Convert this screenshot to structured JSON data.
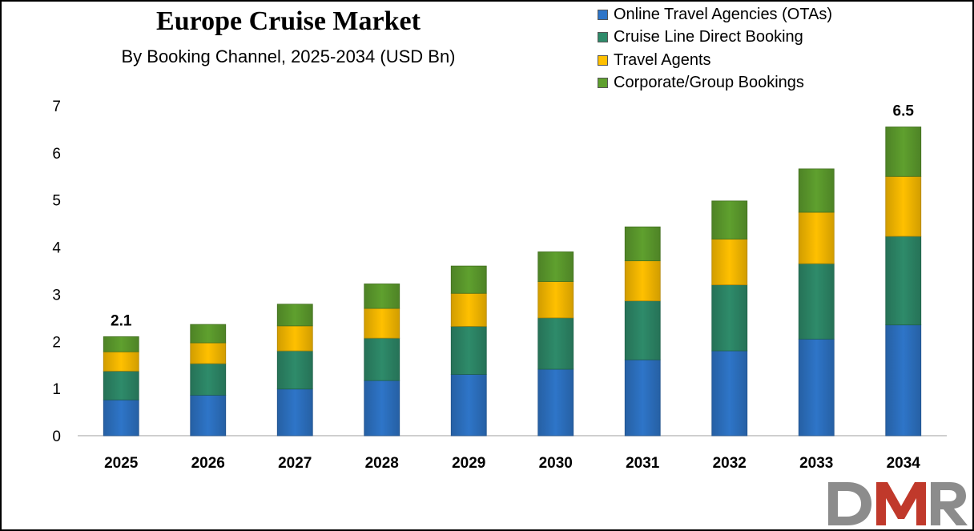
{
  "chart_data": {
    "type": "bar",
    "stacked": true,
    "title": "Europe Cruise Market",
    "subtitle": "By Booking Channel, 2025-2034 (USD Bn)",
    "categories": [
      "2025",
      "2026",
      "2027",
      "2028",
      "2029",
      "2030",
      "2031",
      "2032",
      "2033",
      "2034"
    ],
    "series": [
      {
        "name": "Online Travel Agencies (OTAs)",
        "color": "#2e75c8",
        "values": [
          0.76,
          0.86,
          0.99,
          1.17,
          1.3,
          1.41,
          1.61,
          1.8,
          2.05,
          2.35
        ]
      },
      {
        "name": "Cruise Line Direct Booking",
        "color": "#2e8b6a",
        "values": [
          0.61,
          0.67,
          0.81,
          0.9,
          1.02,
          1.09,
          1.25,
          1.4,
          1.6,
          1.88
        ]
      },
      {
        "name": "Travel Agents",
        "color": "#ffc000",
        "values": [
          0.41,
          0.44,
          0.53,
          0.63,
          0.7,
          0.77,
          0.85,
          0.97,
          1.09,
          1.27
        ]
      },
      {
        "name": "Corporate/Group Bookings",
        "color": "#5fa02e",
        "values": [
          0.32,
          0.39,
          0.46,
          0.52,
          0.58,
          0.63,
          0.72,
          0.81,
          0.92,
          1.05
        ]
      }
    ],
    "data_labels": [
      {
        "category": "2025",
        "text": "2.1"
      },
      {
        "category": "2034",
        "text": "6.5"
      }
    ],
    "y_ticks": [
      "0",
      "1",
      "2",
      "3",
      "4",
      "5",
      "6",
      "7"
    ],
    "ylim": [
      0,
      7
    ],
    "xlabel": "",
    "ylabel": "",
    "grid": false,
    "legend_position": "top-right"
  },
  "logo": {
    "text": "DMR",
    "colors": [
      "#8c8c8c",
      "#c0392b"
    ]
  }
}
